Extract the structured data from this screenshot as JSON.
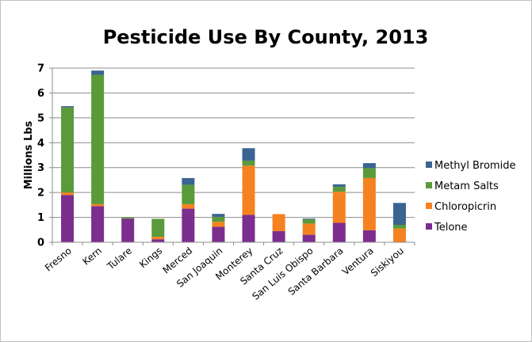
{
  "chart_data": {
    "type": "bar",
    "stacked": true,
    "title": "Pesticide Use By County, 2013",
    "xlabel": "",
    "ylabel": "Millions Lbs",
    "ylim": [
      0,
      7
    ],
    "yticks": [
      "0",
      "1",
      "2",
      "3",
      "4",
      "5",
      "6",
      "7"
    ],
    "grid": true,
    "legend_position": "right",
    "categories": [
      "Fresno",
      "Kern",
      "Tulare",
      "Kings",
      "Merced",
      "San Joaquin",
      "Monterey",
      "Santa Cruz",
      "San Luis Obispo",
      "Santa Barbara",
      "Ventura",
      "Siskiyou"
    ],
    "series": [
      {
        "name": "Telone",
        "color": "#7B2E8E",
        "values": [
          1.9,
          1.45,
          0.95,
          0.12,
          1.35,
          0.62,
          1.1,
          0.45,
          0.3,
          0.78,
          0.48,
          0.0
        ]
      },
      {
        "name": "Chloropicrin",
        "color": "#F58220",
        "values": [
          0.1,
          0.08,
          0.0,
          0.1,
          0.18,
          0.2,
          1.98,
          0.68,
          0.45,
          1.25,
          2.1,
          0.55
        ]
      },
      {
        "name": "Metam Salts",
        "color": "#5A9A3A",
        "values": [
          3.42,
          5.2,
          0.05,
          0.72,
          0.78,
          0.2,
          0.2,
          0.0,
          0.17,
          0.2,
          0.4,
          0.15
        ]
      },
      {
        "name": "Methyl Bromide",
        "color": "#3A6491",
        "values": [
          0.05,
          0.17,
          0.0,
          0.0,
          0.27,
          0.12,
          0.5,
          0.0,
          0.03,
          0.1,
          0.2,
          0.88
        ]
      }
    ]
  }
}
